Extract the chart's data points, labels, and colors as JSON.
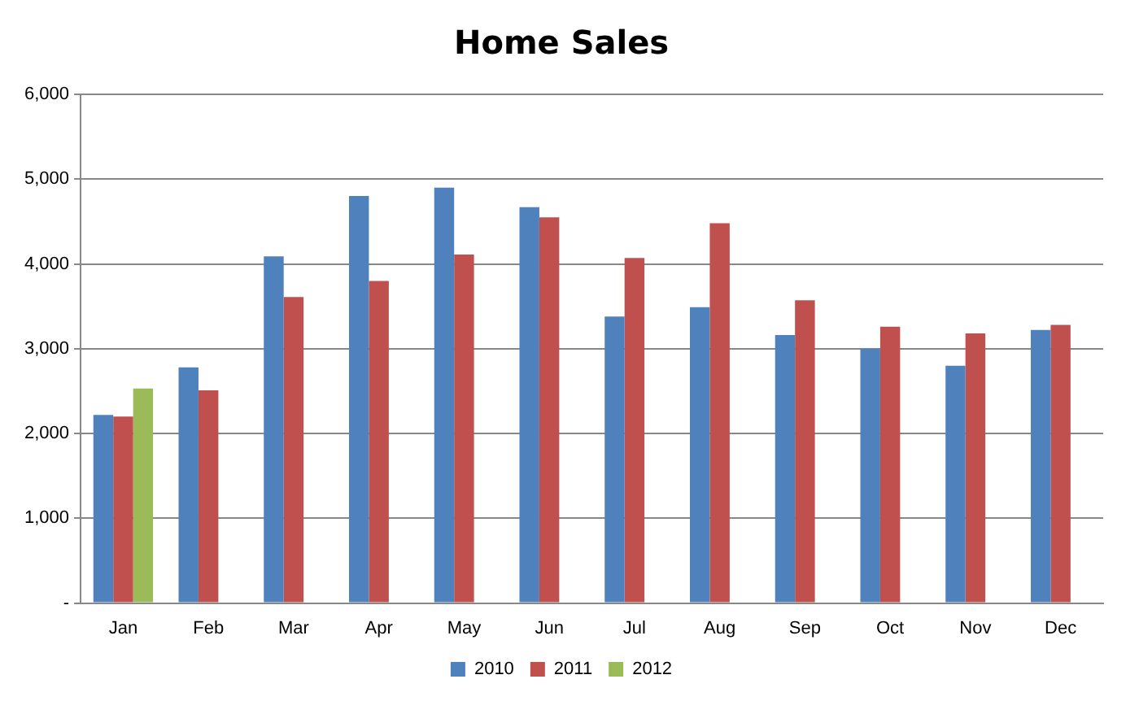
{
  "chart_data": {
    "type": "bar",
    "title": "Home Sales",
    "categories": [
      "Jan",
      "Feb",
      "Mar",
      "Apr",
      "May",
      "Jun",
      "Jul",
      "Aug",
      "Sep",
      "Oct",
      "Nov",
      "Dec"
    ],
    "series": [
      {
        "name": "2010",
        "color": "#4f81bd",
        "values": [
          2220,
          2780,
          4090,
          4800,
          4900,
          4670,
          3380,
          3490,
          3160,
          3000,
          2800,
          3220
        ]
      },
      {
        "name": "2011",
        "color": "#c0504d",
        "values": [
          2200,
          2510,
          3610,
          3800,
          4110,
          4550,
          4070,
          4480,
          3570,
          3260,
          3180,
          3280
        ]
      },
      {
        "name": "2012",
        "color": "#9bbb59",
        "values": [
          2530,
          null,
          null,
          null,
          null,
          null,
          null,
          null,
          null,
          null,
          null,
          null
        ]
      }
    ],
    "ylim": [
      0,
      6000
    ],
    "yticks": [
      {
        "value": 0,
        "label": "-"
      },
      {
        "value": 1000,
        "label": "1,000"
      },
      {
        "value": 2000,
        "label": "2,000"
      },
      {
        "value": 3000,
        "label": "3,000"
      },
      {
        "value": 4000,
        "label": "4,000"
      },
      {
        "value": 5000,
        "label": "5,000"
      },
      {
        "value": 6000,
        "label": "6,000"
      }
    ],
    "grid": "y",
    "legend": "bottom"
  }
}
